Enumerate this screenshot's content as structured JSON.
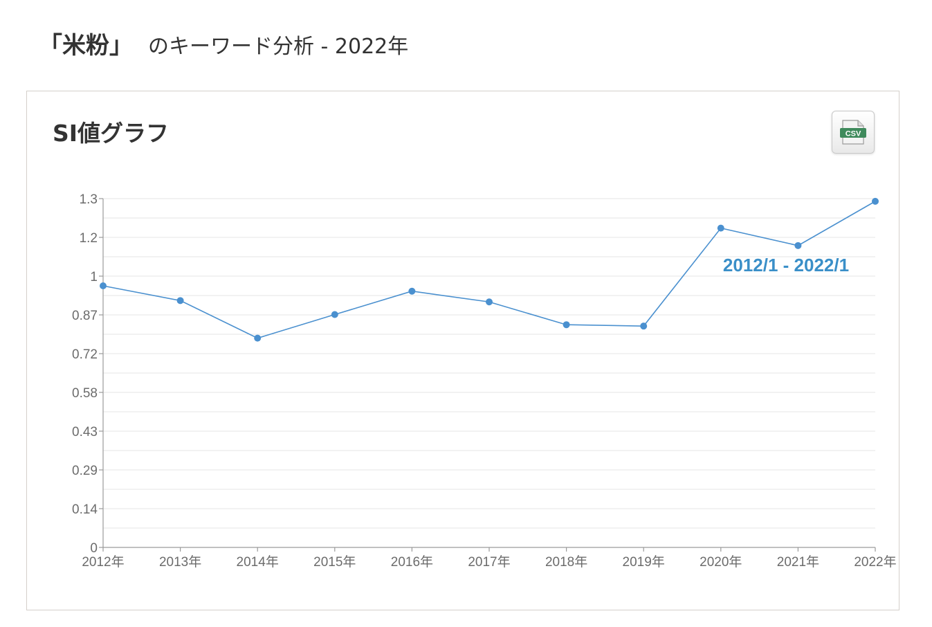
{
  "header": {
    "keyword": "「米粉」",
    "suffix": "のキーワード分析 - 2022年"
  },
  "panel": {
    "title": "SI値グラフ",
    "csv_icon": "csv-file-icon",
    "csv_label": "CSV"
  },
  "colors": {
    "line": "#4a90cf",
    "range_label": "#3a8fc8",
    "grid": "#e4e4e4",
    "axis": "#9a9a9a"
  },
  "chart_data": {
    "type": "line",
    "title": "",
    "xlabel": "",
    "ylabel": "",
    "categories": [
      "2012年",
      "2013年",
      "2014年",
      "2015年",
      "2016年",
      "2017年",
      "2018年",
      "2019年",
      "2020年",
      "2021年",
      "2022年"
    ],
    "series": [
      {
        "values": [
          0.975,
          0.92,
          0.78,
          0.868,
          0.955,
          0.915,
          0.83,
          0.825,
          1.19,
          1.125,
          1.29
        ]
      }
    ],
    "y_ticks": [
      "0",
      "0.14",
      "0.29",
      "0.43",
      "0.58",
      "0.72",
      "0.87",
      "1",
      "1.2",
      "1.3"
    ],
    "ylim": [
      0,
      1.3
    ],
    "grid": true,
    "annotation": "2012/1 - 2022/1"
  }
}
